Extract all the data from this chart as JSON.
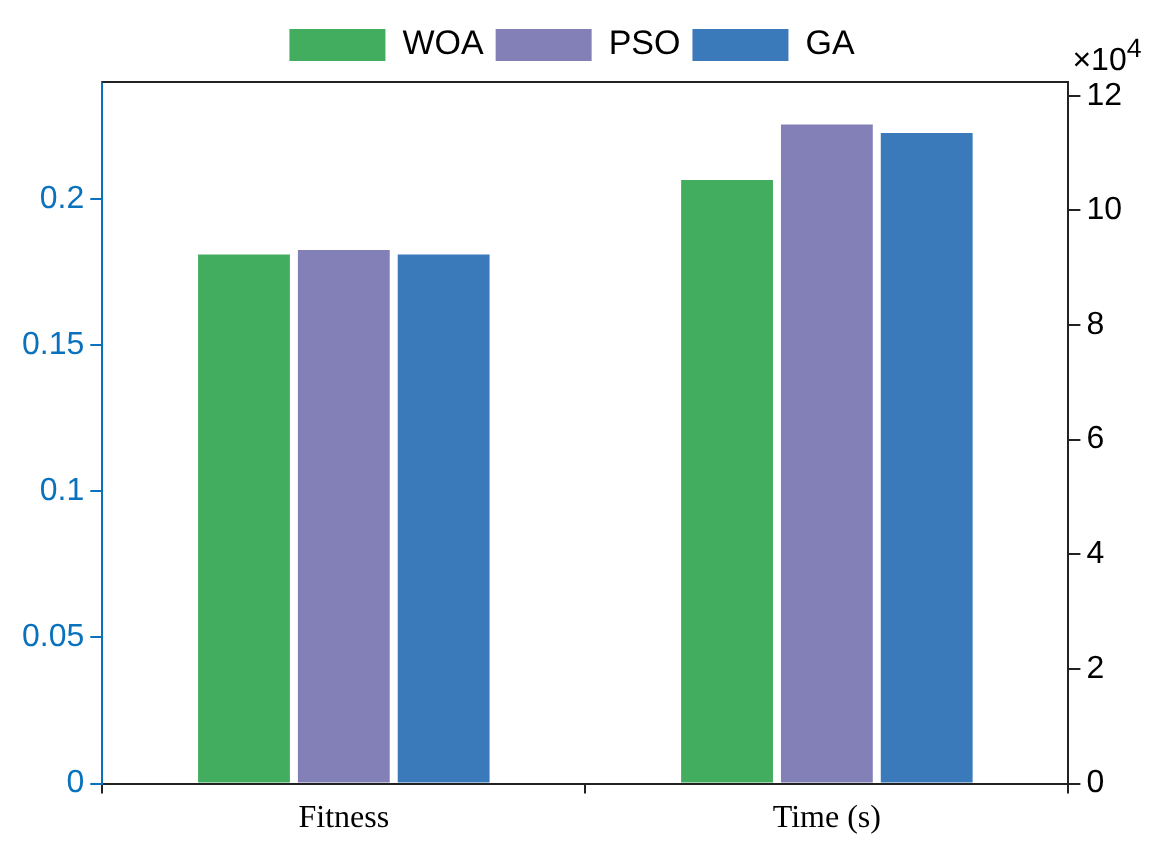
{
  "chart_data": {
    "type": "bar",
    "categories": [
      "Fitness",
      "Time (s)"
    ],
    "series": [
      {
        "name": "WOA",
        "color": "#43ad5f",
        "values": [
          0.181,
          null
        ]
      },
      {
        "name": "PSO",
        "color": "#8380b8",
        "values": [
          0.1825,
          null
        ]
      },
      {
        "name": "GA",
        "color": "#3a7aba",
        "values": [
          0.181,
          null
        ]
      },
      {
        "color": "#43ad5f",
        "values": [
          null,
          10.53
        ],
        "axis": "y2"
      },
      {
        "color": "#8380b8",
        "values": [
          null,
          11.5
        ],
        "axis": "y2"
      },
      {
        "color": "#3a7aba",
        "values": [
          null,
          11.35
        ],
        "axis": "y2"
      }
    ],
    "ylim": [
      0,
      0.24
    ],
    "yticks": [
      0,
      0.05,
      0.1,
      0.15,
      0.2
    ],
    "y2lim": [
      0,
      12.24
    ],
    "y2ticks": [
      0,
      2,
      4,
      6,
      8,
      10,
      12
    ],
    "annotations": [
      "×10$^{4}$"
    ],
    "legend": "top",
    "grid": false
  }
}
